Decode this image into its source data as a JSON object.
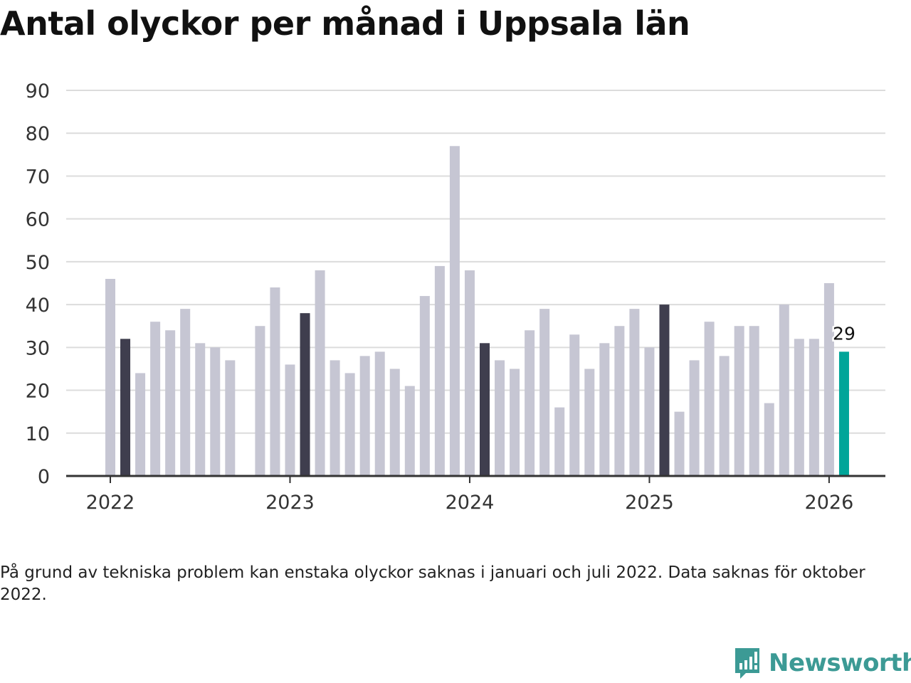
{
  "colors": {
    "bar_default": "#c6c6d3",
    "bar_january": "#3f3e4e",
    "bar_latest": "#00a599",
    "grid": "#dcdcdc",
    "axis": "#333333",
    "brand": "#3c9a95"
  },
  "chart_data": {
    "type": "bar",
    "title": "Antal olyckor per månad i Uppsala län",
    "xlabel": "",
    "ylabel": "",
    "ylim": [
      0,
      90
    ],
    "yticks": [
      0,
      10,
      20,
      30,
      40,
      50,
      60,
      70,
      80,
      90
    ],
    "start_month": "2022-01",
    "year_labels": [
      "2022",
      "2023",
      "2024",
      "2025",
      "2026"
    ],
    "values": [
      46,
      32,
      24,
      36,
      34,
      39,
      31,
      30,
      27,
      null,
      35,
      44,
      26,
      38,
      48,
      27,
      24,
      28,
      29,
      25,
      21,
      42,
      49,
      77,
      48,
      31,
      27,
      25,
      34,
      39,
      16,
      33,
      25,
      31,
      35,
      39,
      30,
      40,
      15,
      27,
      36,
      28,
      35,
      35,
      17,
      40,
      32,
      32,
      45,
      29
    ],
    "highlight": {
      "january_months": true,
      "latest_label": "29"
    }
  },
  "footnote": "På grund av tekniska problem kan enstaka olyckor saknas i januari och juli 2022. Data saknas för oktober 2022.",
  "brand": {
    "name": "Newsworthy",
    "icon": "newsworthy-logo-icon"
  }
}
